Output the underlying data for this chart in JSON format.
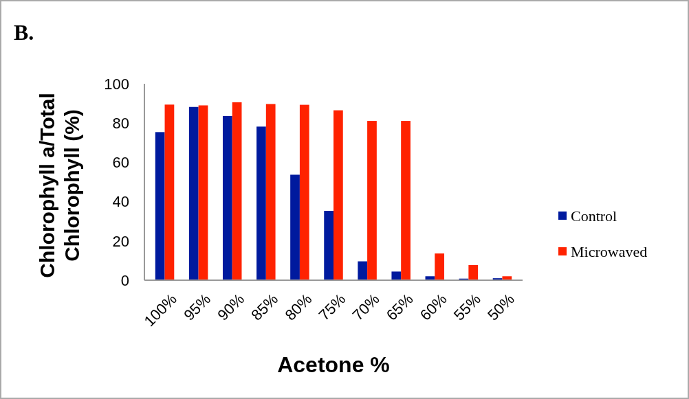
{
  "chart_data": {
    "type": "bar",
    "title": "B.",
    "xlabel": "Acetone %",
    "ylabel": "Chlorophyll a/Total Chlorophyll (%)",
    "categories": [
      "100%",
      "95%",
      "90%",
      "85%",
      "80%",
      "75%",
      "70%",
      "65%",
      "60%",
      "55%",
      "50%"
    ],
    "series": [
      {
        "name": "Control",
        "color": "#001a9e",
        "values": [
          75.4,
          88.2,
          83.6,
          78.2,
          53.7,
          35.3,
          9.6,
          4.4,
          2.0,
          0.8,
          1.0
        ]
      },
      {
        "name": "Microwaved",
        "color": "#ff2200",
        "values": [
          89.4,
          89.0,
          90.6,
          89.7,
          89.3,
          86.5,
          81.1,
          81.1,
          13.6,
          7.7,
          2.0
        ]
      }
    ],
    "ylim": [
      0,
      100
    ],
    "yticks": [
      0,
      20,
      40,
      60,
      80,
      100
    ],
    "grid": false,
    "legend": "right"
  }
}
